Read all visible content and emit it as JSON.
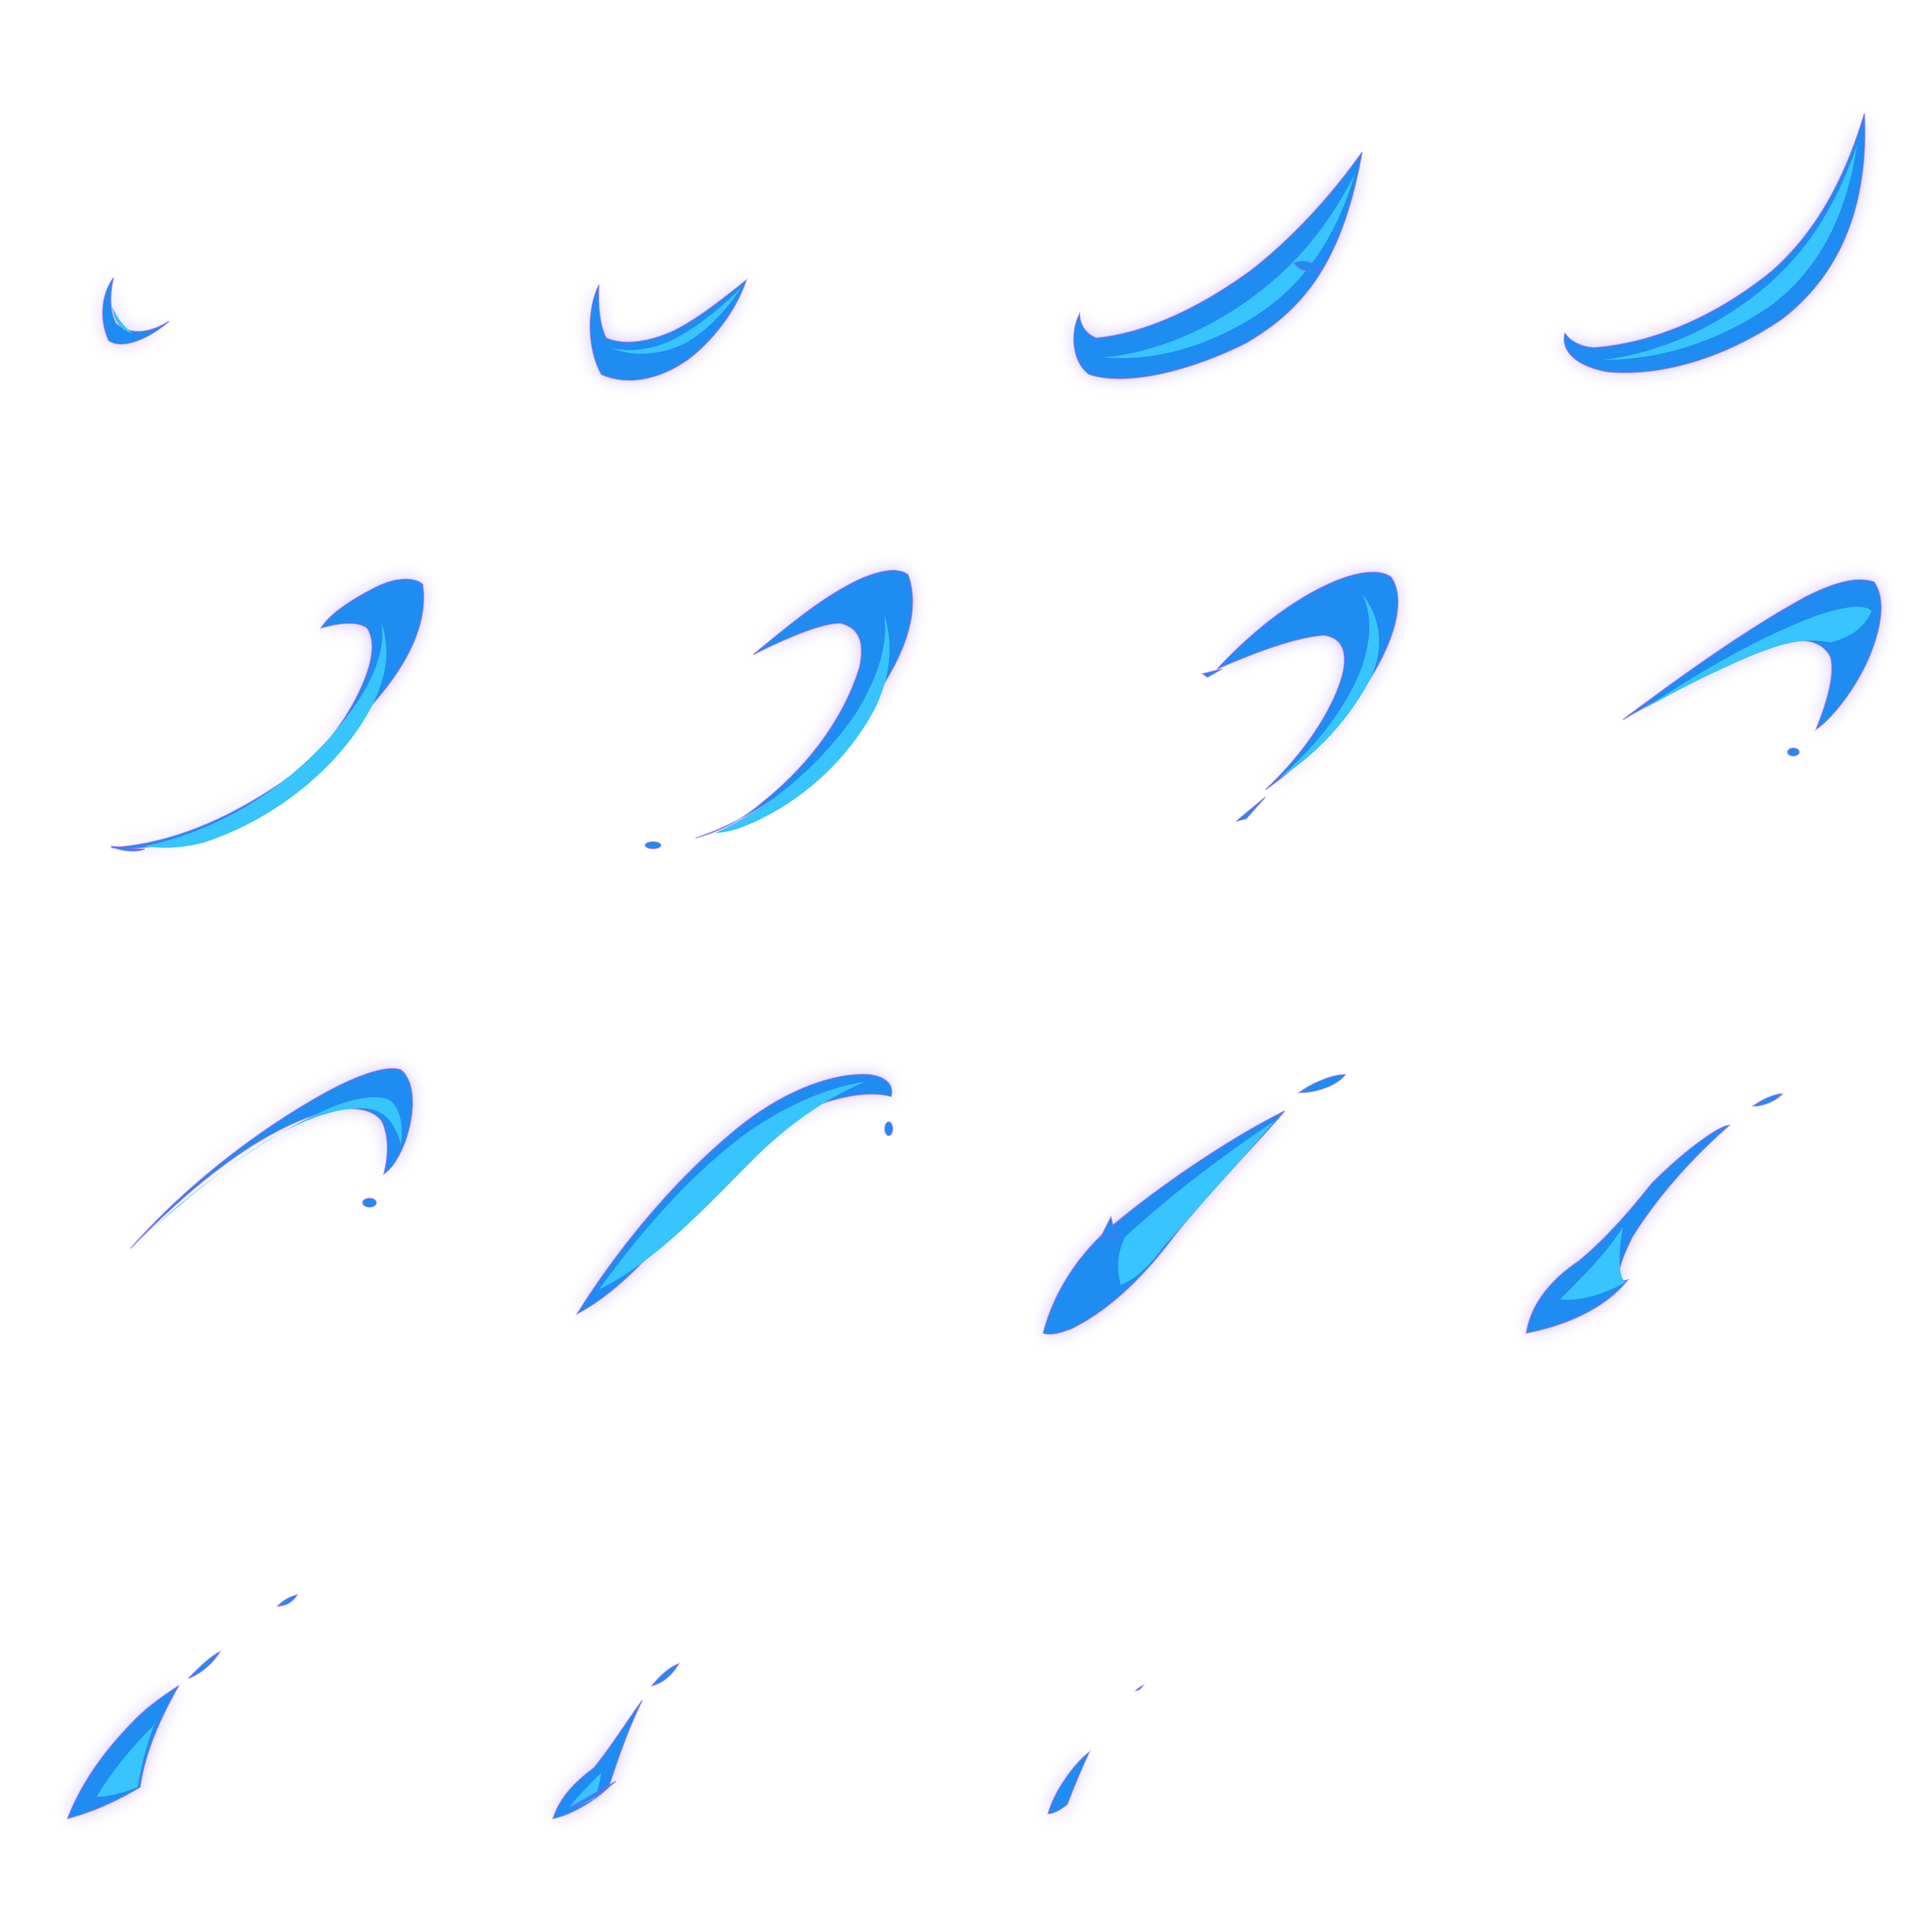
{
  "sprite_sheet": {
    "grid": {
      "columns": 4,
      "rows": 4,
      "frame_count": 15,
      "empty_frames": 1
    },
    "colors": {
      "background": "#ffffff",
      "body": "#1f8cf2",
      "highlight": "#38c4fc",
      "glow": "#8b5cf6"
    },
    "frames": [
      {
        "index": 1,
        "name": "slash-frame-1"
      },
      {
        "index": 2,
        "name": "slash-frame-2"
      },
      {
        "index": 3,
        "name": "slash-frame-3"
      },
      {
        "index": 4,
        "name": "slash-frame-4"
      },
      {
        "index": 5,
        "name": "slash-frame-5"
      },
      {
        "index": 6,
        "name": "slash-frame-6"
      },
      {
        "index": 7,
        "name": "slash-frame-7"
      },
      {
        "index": 8,
        "name": "slash-frame-8"
      },
      {
        "index": 9,
        "name": "slash-frame-9"
      },
      {
        "index": 10,
        "name": "slash-frame-10"
      },
      {
        "index": 11,
        "name": "slash-frame-11"
      },
      {
        "index": 12,
        "name": "slash-frame-12"
      },
      {
        "index": 13,
        "name": "slash-frame-13"
      },
      {
        "index": 14,
        "name": "slash-frame-14"
      },
      {
        "index": 15,
        "name": "slash-frame-15"
      }
    ]
  }
}
